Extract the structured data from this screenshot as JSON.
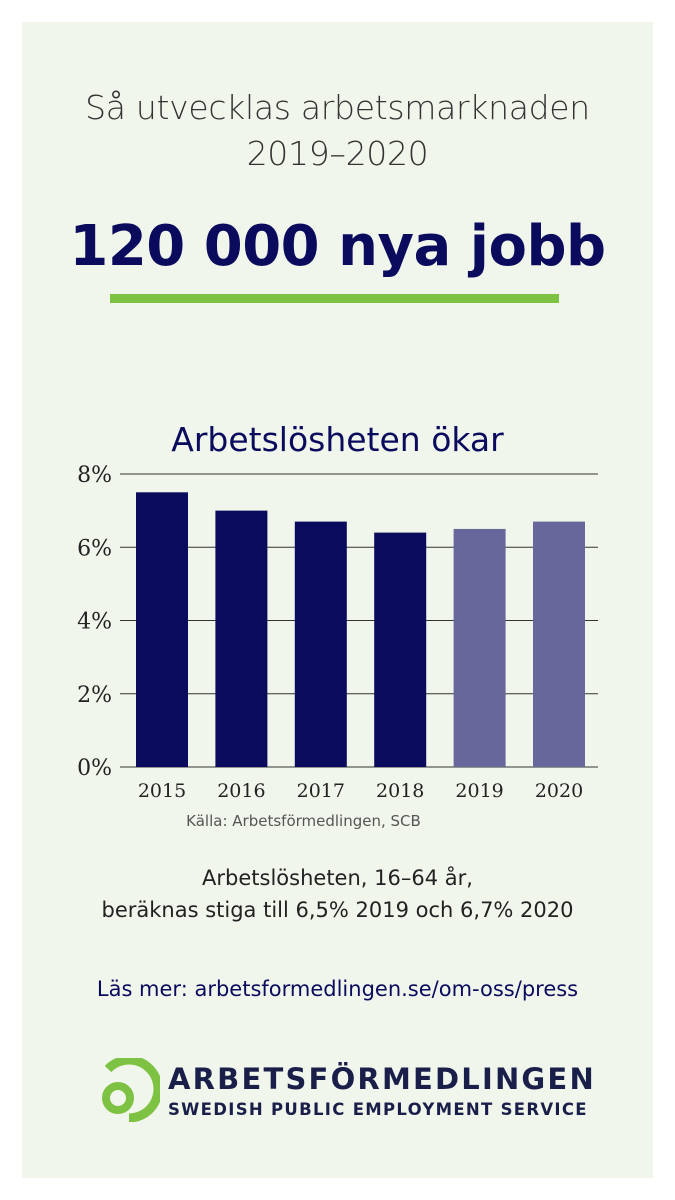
{
  "header": {
    "line1": "Så utvecklas arbetsmarknaden",
    "line2": "2019–2020",
    "headline": "120 000 nya jobb"
  },
  "colors": {
    "navy": "#0b0b5e",
    "forecast": "#67679b",
    "accent_green": "#7dc242",
    "background": "#f1f6ec"
  },
  "chart_data": {
    "type": "bar",
    "title": "Arbetslösheten ökar",
    "categories": [
      "2015",
      "2016",
      "2017",
      "2018",
      "2019",
      "2020"
    ],
    "values": [
      7.5,
      7.0,
      6.7,
      6.4,
      6.5,
      6.7
    ],
    "forecast_from_index": 4,
    "ylim": [
      0,
      8
    ],
    "yticks": [
      "0%",
      "2%",
      "4%",
      "6%",
      "8%"
    ],
    "grid": true,
    "xlabel": "",
    "ylabel": ""
  },
  "source": "Källa: Arbetsförmedlingen, SCB",
  "description": {
    "line1": "Arbetslösheten, 16–64 år,",
    "line2": "beräknas stiga till 6,5% 2019 och 6,7% 2020"
  },
  "read_more": "Läs mer: arbetsformedlingen.se/om-oss/press",
  "logo": {
    "icon": "arbetsformedlingen-logo-icon",
    "name": "ARBETSFÖRMEDLINGEN",
    "tagline": "SWEDISH PUBLIC EMPLOYMENT SERVICE"
  }
}
